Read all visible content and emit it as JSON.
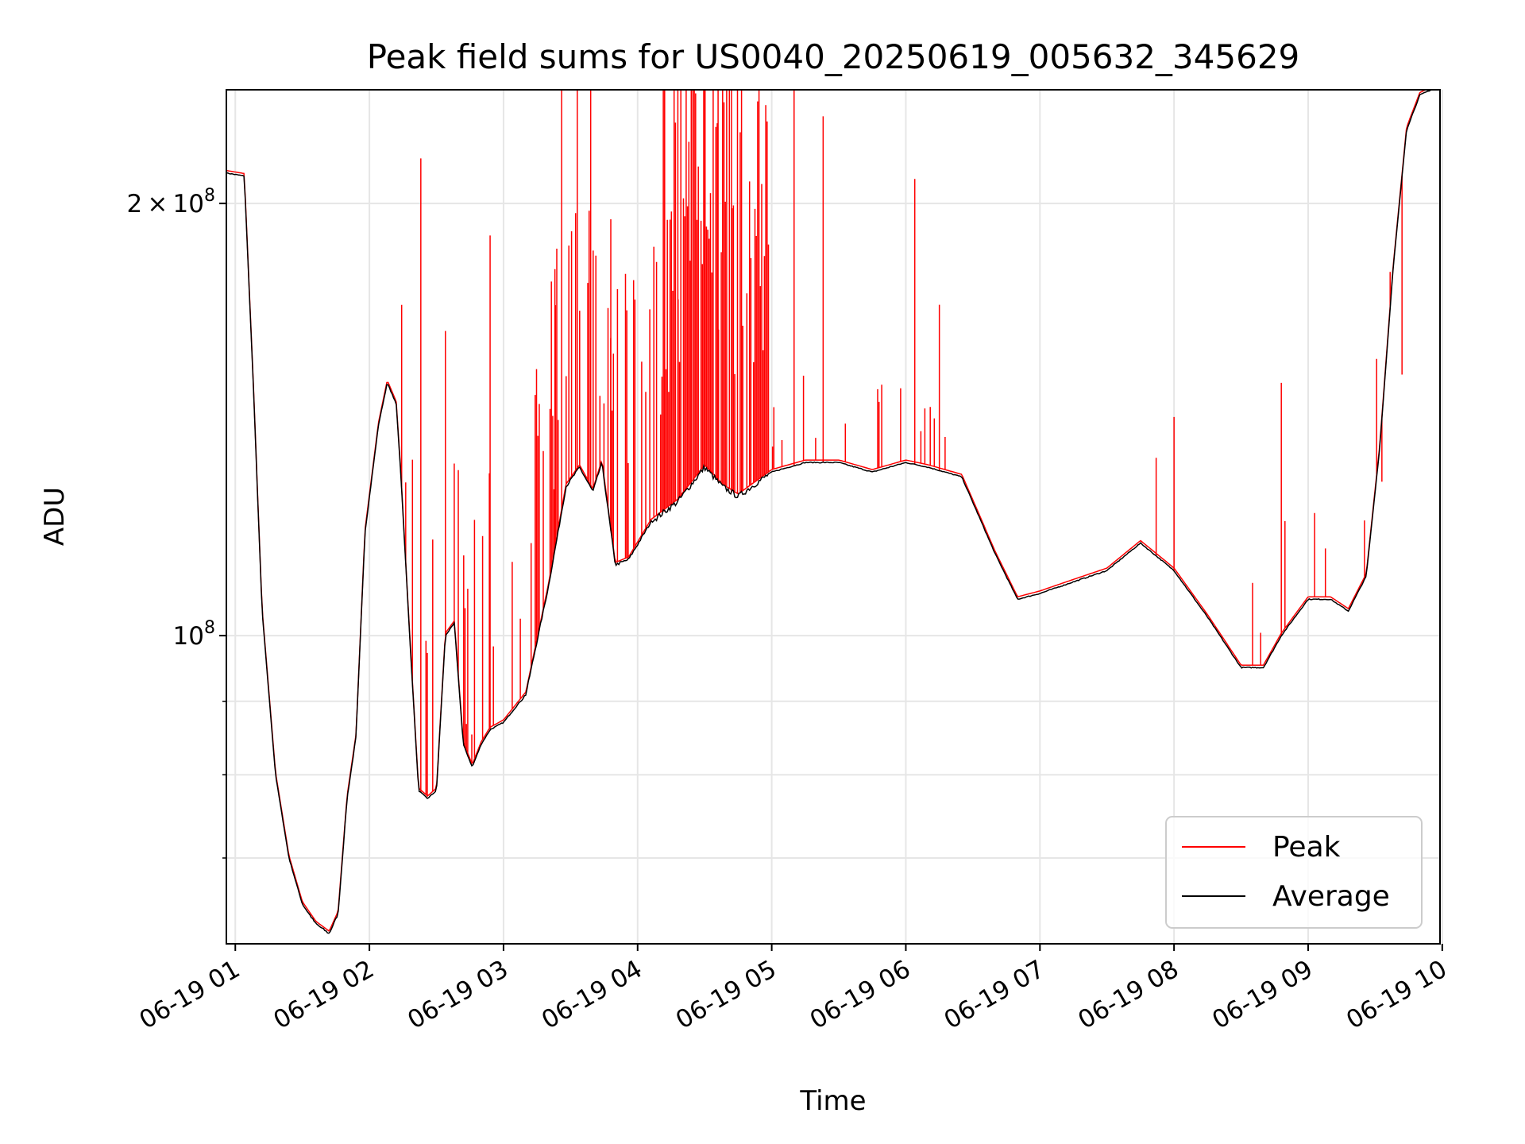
{
  "chart_data": {
    "type": "line",
    "title": "Peak field sums for US0040_20250619_005632_345629",
    "xlabel": "Time",
    "ylabel": "ADU",
    "yscale": "log",
    "xlim": [
      "2025-06-19 00:56",
      "2025-06-19 09:59"
    ],
    "ylim": [
      61000000,
      240000000
    ],
    "x_ticks": [
      "06-19 01",
      "06-19 02",
      "06-19 03",
      "06-19 04",
      "06-19 05",
      "06-19 06",
      "06-19 07",
      "06-19 08",
      "06-19 09",
      "06-19 10"
    ],
    "y_tick_labels": [
      {
        "value": 200000000,
        "base": "2",
        "sym": "×",
        "exp_base": "10",
        "exp": "8"
      },
      {
        "value": 100000000,
        "base": "",
        "sym": "",
        "exp_base": "10",
        "exp": "8"
      }
    ],
    "y_minor_ticks": [
      70000000,
      80000000,
      90000000
    ],
    "grid": true,
    "legend": {
      "position": "lower-right",
      "entries": [
        {
          "label": "Peak",
          "color": "#ff0000"
        },
        {
          "label": "Average",
          "color": "#000000"
        }
      ]
    },
    "series": [
      {
        "name": "Average",
        "color": "#000000",
        "x": [
          "2025-06-19 00:56",
          "2025-06-19 01:04",
          "2025-06-19 01:08",
          "2025-06-19 01:12",
          "2025-06-19 01:18",
          "2025-06-19 01:24",
          "2025-06-19 01:30",
          "2025-06-19 01:36",
          "2025-06-19 01:42",
          "2025-06-19 01:46",
          "2025-06-19 01:50",
          "2025-06-19 01:54",
          "2025-06-19 01:58",
          "2025-06-19 02:04",
          "2025-06-19 02:08",
          "2025-06-19 02:12",
          "2025-06-19 02:14",
          "2025-06-19 02:18",
          "2025-06-19 02:22",
          "2025-06-19 02:26",
          "2025-06-19 02:30",
          "2025-06-19 02:34",
          "2025-06-19 02:38",
          "2025-06-19 02:42",
          "2025-06-19 02:46",
          "2025-06-19 02:50",
          "2025-06-19 02:54",
          "2025-06-19 03:00",
          "2025-06-19 03:10",
          "2025-06-19 03:20",
          "2025-06-19 03:28",
          "2025-06-19 03:34",
          "2025-06-19 03:40",
          "2025-06-19 03:44",
          "2025-06-19 03:50",
          "2025-06-19 03:56",
          "2025-06-19 04:06",
          "2025-06-19 04:18",
          "2025-06-19 04:30",
          "2025-06-19 04:38",
          "2025-06-19 04:45",
          "2025-06-19 05:00",
          "2025-06-19 05:15",
          "2025-06-19 05:30",
          "2025-06-19 05:45",
          "2025-06-19 06:00",
          "2025-06-19 06:10",
          "2025-06-19 06:25",
          "2025-06-19 06:40",
          "2025-06-19 06:50",
          "2025-06-19 07:00",
          "2025-06-19 07:15",
          "2025-06-19 07:30",
          "2025-06-19 07:45",
          "2025-06-19 08:00",
          "2025-06-19 08:15",
          "2025-06-19 08:30",
          "2025-06-19 08:40",
          "2025-06-19 08:48",
          "2025-06-19 09:00",
          "2025-06-19 09:10",
          "2025-06-19 09:18",
          "2025-06-19 09:26",
          "2025-06-19 09:32",
          "2025-06-19 09:38",
          "2025-06-19 09:44",
          "2025-06-19 09:50",
          "2025-06-19 09:55"
        ],
        "values": [
          210000000,
          209000000,
          150000000,
          104000000,
          80000000,
          70000000,
          65000000,
          63000000,
          62000000,
          64000000,
          77000000,
          85000000,
          118000000,
          140000000,
          150000000,
          145000000,
          130000000,
          100000000,
          78000000,
          77000000,
          78000000,
          100000000,
          102000000,
          84000000,
          81000000,
          84000000,
          86000000,
          87000000,
          91000000,
          108000000,
          127000000,
          131000000,
          126000000,
          132000000,
          112000000,
          113000000,
          120000000,
          124000000,
          131000000,
          127000000,
          125000000,
          130000000,
          132000000,
          132000000,
          130000000,
          132000000,
          131000000,
          129000000,
          114000000,
          106000000,
          107000000,
          109000000,
          111000000,
          116000000,
          111000000,
          103000000,
          95000000,
          95000000,
          100000000,
          106000000,
          106000000,
          104000000,
          110000000,
          135000000,
          180000000,
          225000000,
          238000000,
          240000000
        ]
      },
      {
        "name": "Peak",
        "color": "#ff0000",
        "spikes": [
          {
            "x": "2025-06-19 02:23",
            "value": 215000000
          },
          {
            "x": "2025-06-19 02:34",
            "value": 163000000
          },
          {
            "x": "2025-06-19 02:54",
            "value": 190000000
          },
          {
            "x": "2025-06-19 03:16",
            "value": 145000000
          },
          {
            "x": "2025-06-19 03:23",
            "value": 180000000
          },
          {
            "x": "2025-06-19 03:26",
            "value": 240000000
          },
          {
            "x": "2025-06-19 03:33",
            "value": 240000000
          },
          {
            "x": "2025-06-19 03:39",
            "value": 240000000
          },
          {
            "x": "2025-06-19 03:48",
            "value": 195000000
          },
          {
            "x": "2025-06-19 04:12",
            "value": 240000000
          },
          {
            "x": "2025-06-19 04:18",
            "value": 240000000
          },
          {
            "x": "2025-06-19 04:24",
            "value": 240000000
          },
          {
            "x": "2025-06-19 04:30",
            "value": 240000000
          },
          {
            "x": "2025-06-19 04:36",
            "value": 240000000
          },
          {
            "x": "2025-06-19 04:42",
            "value": 240000000
          },
          {
            "x": "2025-06-19 05:10",
            "value": 240000000
          },
          {
            "x": "2025-06-19 05:23",
            "value": 230000000
          },
          {
            "x": "2025-06-19 06:04",
            "value": 208000000
          },
          {
            "x": "2025-06-19 06:15",
            "value": 170000000
          },
          {
            "x": "2025-06-19 07:52",
            "value": 133000000
          },
          {
            "x": "2025-06-19 08:00",
            "value": 142000000
          },
          {
            "x": "2025-06-19 08:48",
            "value": 150000000
          },
          {
            "x": "2025-06-19 09:33",
            "value": 128000000
          },
          {
            "x": "2025-06-19 09:42",
            "value": 152000000
          }
        ]
      }
    ]
  }
}
